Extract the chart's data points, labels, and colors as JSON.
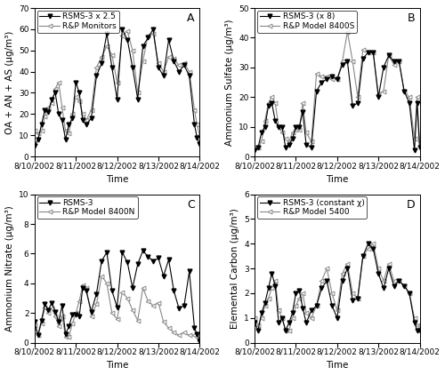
{
  "panel_A": {
    "label": "A",
    "ylabel": "OA + AN + AS (μg/m³)",
    "ylim": [
      0,
      70
    ],
    "yticks": [
      0,
      10,
      20,
      30,
      40,
      50,
      60,
      70
    ],
    "legend1": "RSMS-3 x 2.5",
    "legend2": "R&P Monitors",
    "series1_x": [
      0,
      2,
      4,
      6,
      8,
      10,
      12,
      14,
      16,
      18,
      20,
      22,
      24,
      26,
      28,
      30,
      33,
      36,
      39,
      42,
      45,
      48,
      51,
      54,
      57,
      60,
      63,
      66,
      69,
      72,
      75,
      78,
      81,
      84,
      87,
      90,
      93,
      94.5,
      96
    ],
    "series1_y": [
      5,
      8,
      15,
      22,
      21,
      27,
      30,
      20,
      17,
      8,
      15,
      18,
      35,
      30,
      17,
      15,
      18,
      38,
      44,
      58,
      42,
      27,
      60,
      55,
      42,
      27,
      52,
      56,
      60,
      42,
      38,
      55,
      45,
      40,
      43,
      38,
      15,
      9,
      6
    ],
    "series2_x": [
      0,
      2,
      4,
      6,
      8,
      10,
      12,
      14,
      16,
      18,
      20,
      22,
      24,
      26,
      28,
      30,
      33,
      36,
      39,
      42,
      45,
      48,
      51,
      54,
      57,
      60,
      63,
      66,
      69,
      72,
      75,
      78,
      81,
      84,
      87,
      90,
      93,
      94.5,
      96
    ],
    "series2_y": [
      12,
      11,
      12,
      19,
      23,
      25,
      32,
      35,
      23,
      12,
      11,
      20,
      28,
      26,
      20,
      17,
      22,
      42,
      47,
      52,
      48,
      35,
      57,
      59,
      50,
      30,
      45,
      57,
      58,
      44,
      40,
      47,
      46,
      43,
      44,
      40,
      22,
      15,
      10
    ]
  },
  "panel_B": {
    "label": "B",
    "ylabel": "Ammonium Sulfate (μg/m³)",
    "ylim": [
      0,
      50
    ],
    "yticks": [
      0,
      10,
      20,
      30,
      40,
      50
    ],
    "legend1": "RSMS-3 (x 8)",
    "legend2": "R&P Model 8400S",
    "series1_x": [
      0,
      2,
      4,
      6,
      8,
      10,
      12,
      14,
      16,
      18,
      20,
      22,
      24,
      26,
      28,
      30,
      33,
      36,
      39,
      42,
      45,
      48,
      51,
      54,
      57,
      60,
      63,
      66,
      69,
      72,
      75,
      78,
      81,
      84,
      87,
      90,
      93,
      94.5,
      96
    ],
    "series1_y": [
      2,
      3,
      8,
      10,
      17,
      18,
      12,
      10,
      10,
      3,
      4,
      6,
      10,
      10,
      15,
      4,
      3,
      22,
      25,
      26,
      27,
      26,
      31,
      32,
      17,
      18,
      33,
      35,
      35,
      20,
      30,
      34,
      32,
      32,
      22,
      18,
      2,
      18,
      3
    ],
    "series2_x": [
      0,
      2,
      4,
      6,
      8,
      10,
      12,
      14,
      16,
      18,
      20,
      22,
      24,
      26,
      28,
      30,
      33,
      36,
      39,
      42,
      45,
      48,
      51,
      54,
      57,
      60,
      63,
      66,
      69,
      72,
      75,
      78,
      81,
      84,
      87,
      90,
      93,
      94.5,
      96
    ],
    "series2_y": [
      3,
      3,
      5,
      12,
      18,
      20,
      18,
      10,
      8,
      6,
      5,
      8,
      9,
      9,
      18,
      8,
      5,
      28,
      27,
      27,
      26,
      26,
      32,
      42,
      32,
      20,
      36,
      35,
      35,
      21,
      22,
      34,
      31,
      32,
      22,
      20,
      6,
      20,
      5
    ]
  },
  "panel_C": {
    "label": "C",
    "ylabel": "Ammonium Nitrate (μg/m³)",
    "ylim": [
      0,
      10
    ],
    "yticks": [
      0,
      2,
      4,
      6,
      8,
      10
    ],
    "legend1": "RSMS-3",
    "legend2": "R&P Model 8400N",
    "series1_x": [
      0,
      2,
      4,
      6,
      8,
      10,
      12,
      14,
      16,
      18,
      20,
      22,
      24,
      26,
      28,
      30,
      33,
      36,
      39,
      42,
      45,
      48,
      51,
      54,
      57,
      60,
      63,
      66,
      69,
      72,
      75,
      78,
      81,
      84,
      87,
      90,
      93,
      94.5,
      96
    ],
    "series1_y": [
      1.4,
      0.5,
      1.5,
      2.6,
      2.2,
      2.7,
      2.1,
      1.4,
      2.5,
      0.6,
      1.1,
      1.9,
      1.9,
      1.8,
      3.7,
      3.5,
      2.1,
      3.3,
      5.5,
      6.1,
      3.5,
      2.4,
      6.1,
      5.4,
      3.7,
      5.3,
      6.2,
      5.8,
      5.5,
      5.7,
      4.5,
      5.6,
      3.5,
      2.3,
      2.5,
      4.8,
      1.0,
      0.6,
      0.1
    ],
    "series2_x": [
      0,
      2,
      4,
      6,
      8,
      10,
      12,
      14,
      16,
      18,
      20,
      22,
      24,
      26,
      28,
      30,
      33,
      36,
      39,
      42,
      45,
      48,
      51,
      54,
      57,
      60,
      63,
      66,
      69,
      72,
      75,
      78,
      81,
      84,
      87,
      90,
      93,
      94.5,
      96
    ],
    "series2_y": [
      1.2,
      0.5,
      1.3,
      2.4,
      2.0,
      2.3,
      1.8,
      1.1,
      1.8,
      0.4,
      0.4,
      1.3,
      2.0,
      2.8,
      3.9,
      3.7,
      1.8,
      2.6,
      4.5,
      4.0,
      2.0,
      1.6,
      3.4,
      3.0,
      2.2,
      1.5,
      3.7,
      2.8,
      2.5,
      2.7,
      1.4,
      1.0,
      0.7,
      0.5,
      0.7,
      0.5,
      0.5,
      0.4,
      0.2
    ]
  },
  "panel_D": {
    "label": "D",
    "ylabel": "Elemental Carbon (μg/m³)",
    "ylim": [
      0,
      6
    ],
    "yticks": [
      0,
      1,
      2,
      3,
      4,
      5,
      6
    ],
    "legend1": "RSMS-3 (constant χ)",
    "legend2": "R&P Model 5400",
    "series1_x": [
      0,
      2,
      4,
      6,
      8,
      10,
      12,
      14,
      16,
      18,
      20,
      22,
      24,
      26,
      28,
      30,
      33,
      36,
      39,
      42,
      45,
      48,
      51,
      54,
      57,
      60,
      63,
      66,
      69,
      72,
      75,
      78,
      81,
      84,
      87,
      90,
      93,
      94.5,
      96
    ],
    "series1_y": [
      0.8,
      0.5,
      1.2,
      1.6,
      2.2,
      2.8,
      2.3,
      0.8,
      1.0,
      0.5,
      0.8,
      1.2,
      2.0,
      2.1,
      1.4,
      0.8,
      1.3,
      1.5,
      2.2,
      2.5,
      1.5,
      1.0,
      2.5,
      3.0,
      1.7,
      1.8,
      3.5,
      4.0,
      3.8,
      2.8,
      2.2,
      3.0,
      2.3,
      2.5,
      2.3,
      2.0,
      0.8,
      0.5,
      0.5
    ],
    "series2_x": [
      0,
      2,
      4,
      6,
      8,
      10,
      12,
      14,
      16,
      18,
      20,
      22,
      24,
      26,
      28,
      30,
      33,
      36,
      39,
      42,
      45,
      48,
      51,
      54,
      57,
      60,
      63,
      66,
      69,
      72,
      75,
      78,
      81,
      84,
      87,
      90,
      93,
      94.5,
      96
    ],
    "series2_y": [
      1.0,
      0.7,
      1.0,
      1.5,
      1.8,
      2.2,
      2.5,
      1.3,
      1.0,
      0.5,
      0.5,
      1.0,
      1.5,
      1.8,
      2.0,
      1.2,
      1.0,
      1.5,
      2.5,
      3.0,
      2.0,
      1.3,
      2.8,
      3.2,
      2.0,
      1.8,
      3.5,
      3.8,
      4.0,
      3.0,
      2.5,
      3.2,
      2.5,
      2.5,
      2.3,
      2.0,
      1.0,
      0.7,
      0.7
    ]
  },
  "xtick_labels": [
    "8/10/2002",
    "8/11/2002",
    "8/12/2002",
    "8/13/2002",
    "8/14/2002"
  ],
  "xtick_pos": [
    0,
    24,
    48,
    72,
    96
  ],
  "xlabel": "Time",
  "color_s1": "#000000",
  "color_s2": "#888888",
  "marker_s1": "v",
  "marker_s2": "<",
  "linewidth": 0.8,
  "markersize": 3.5,
  "fontsize_tick": 6.5,
  "fontsize_label": 7.5,
  "fontsize_legend": 6.5
}
